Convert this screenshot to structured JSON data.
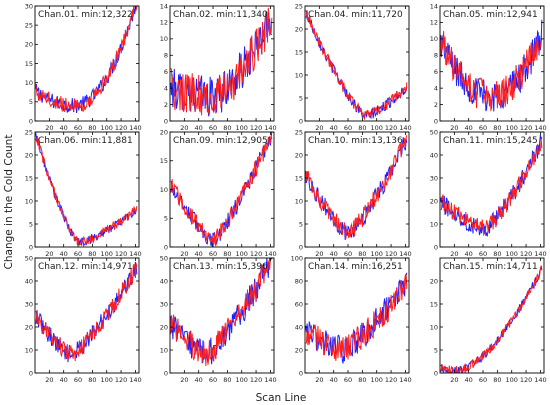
{
  "figure": {
    "ylabel": "Change in the Cold Count",
    "xlabel": "Scan Line"
  },
  "chart_data": {
    "type": "line",
    "xlim": [
      0,
      145
    ],
    "xticks": [
      20,
      40,
      60,
      80,
      100,
      120,
      140
    ],
    "series_colors": [
      "#1f1fff",
      "#ff1f1f"
    ],
    "panels": [
      {
        "title": "Chan.01. min:12,322",
        "ylim": [
          0,
          30
        ],
        "yticks": [
          0,
          5,
          10,
          15,
          20,
          25,
          30
        ],
        "shape": "u",
        "start": 8,
        "end": 30,
        "min": 4,
        "minX": 55,
        "noise": 2,
        "growth": 2
      },
      {
        "title": "Chan.02. min:11,340",
        "ylim": [
          0,
          14
        ],
        "yticks": [
          0,
          2,
          4,
          6,
          8,
          10,
          12,
          14
        ],
        "shape": "u",
        "start": 4,
        "end": 12,
        "min": 3,
        "minX": 60,
        "noise": 2.5,
        "growth": 1.5
      },
      {
        "title": "Chan.04. min:11,720",
        "ylim": [
          0,
          25
        ],
        "yticks": [
          0,
          5,
          10,
          15,
          20,
          25
        ],
        "shape": "u",
        "start": 24,
        "end": 7,
        "min": 1,
        "minX": 85,
        "noise": 1.2,
        "growth": 1.3
      },
      {
        "title": "Chan.05. min:12,941",
        "ylim": [
          0,
          14
        ],
        "yticks": [
          0,
          2,
          4,
          6,
          8,
          10,
          12,
          14
        ],
        "shape": "u",
        "start": 10,
        "end": 10,
        "min": 3,
        "minX": 70,
        "noise": 2,
        "growth": 2
      },
      {
        "title": "Chan.06. min:11,881",
        "ylim": [
          0,
          25
        ],
        "yticks": [
          0,
          5,
          10,
          15,
          20,
          25
        ],
        "shape": "u",
        "start": 25,
        "end": 8,
        "min": 1,
        "minX": 62,
        "noise": 1,
        "growth": 1.4
      },
      {
        "title": "Chan.09. min:12,905",
        "ylim": [
          0,
          20
        ],
        "yticks": [
          0,
          5,
          10,
          15,
          20
        ],
        "shape": "u",
        "start": 11,
        "end": 19,
        "min": 1,
        "minX": 60,
        "noise": 1.5,
        "growth": 1.2
      },
      {
        "title": "Chan.10. min:13,136",
        "ylim": [
          0,
          25
        ],
        "yticks": [
          0,
          5,
          10,
          15,
          20,
          25
        ],
        "shape": "u",
        "start": 16,
        "end": 23,
        "min": 3,
        "minX": 60,
        "noise": 2,
        "growth": 1.3
      },
      {
        "title": "Chan.11. min:15,245",
        "ylim": [
          0,
          50
        ],
        "yticks": [
          0,
          10,
          20,
          30,
          40,
          50
        ],
        "shape": "u",
        "start": 20,
        "end": 45,
        "min": 8,
        "minX": 60,
        "noise": 4,
        "growth": 1.4
      },
      {
        "title": "Chan.12. min:14,971",
        "ylim": [
          0,
          50
        ],
        "yticks": [
          0,
          10,
          20,
          30,
          40,
          50
        ],
        "shape": "u",
        "start": 25,
        "end": 45,
        "min": 8,
        "minX": 50,
        "noise": 4,
        "growth": 1.3
      },
      {
        "title": "Chan.13. min:15,396",
        "ylim": [
          0,
          50
        ],
        "yticks": [
          0,
          10,
          20,
          30,
          40,
          50
        ],
        "shape": "u",
        "start": 22,
        "end": 48,
        "min": 8,
        "minX": 50,
        "noise": 6,
        "growth": 1.3
      },
      {
        "title": "Chan.14. min:16,251",
        "ylim": [
          0,
          100
        ],
        "yticks": [
          0,
          20,
          40,
          60,
          80,
          100
        ],
        "shape": "u",
        "start": 35,
        "end": 75,
        "min": 20,
        "minX": 55,
        "noise": 12,
        "growth": 1.2
      },
      {
        "title": "Chan.15. min:14,711",
        "ylim": [
          0,
          25
        ],
        "yticks": [
          0,
          5,
          10,
          15,
          20
        ],
        "shape": "u",
        "start": 1,
        "end": 22,
        "min": 0.5,
        "minX": 25,
        "noise": 1,
        "growth": 1.6
      }
    ]
  }
}
